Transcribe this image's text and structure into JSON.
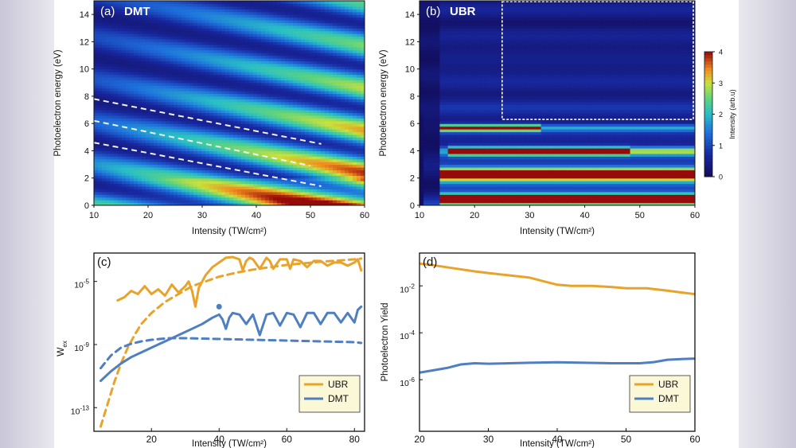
{
  "colors": {
    "ubr": "#e8a32a",
    "dmt": "#4f7fc0",
    "frame": "#111111"
  },
  "chart_data": [
    {
      "id": "a",
      "type": "heatmap",
      "panel_label": "(a)",
      "title": "DMT",
      "xlabel": "Intensity (TW/cm²)",
      "ylabel": "Photoelectron energy (eV)",
      "xlim": [
        10,
        60
      ],
      "ylim": [
        0,
        15
      ],
      "xticks": [
        "10",
        "20",
        "30",
        "40",
        "50",
        "60"
      ],
      "yticks": [
        "0",
        "2",
        "4",
        "6",
        "8",
        "10",
        "12",
        "14"
      ],
      "colormap": "jet-like",
      "dashed_guides": [
        {
          "x": [
            10,
            52
          ],
          "y": [
            7.8,
            4.5
          ]
        },
        {
          "x": [
            10,
            50
          ],
          "y": [
            6.2,
            2.9
          ]
        },
        {
          "x": [
            10,
            52
          ],
          "y": [
            4.6,
            1.4
          ]
        }
      ]
    },
    {
      "id": "b",
      "type": "heatmap",
      "panel_label": "(b)",
      "title": "UBR",
      "xlabel": "Intensity (TW/cm²)",
      "ylabel": "Photoelectron energy (eV)",
      "xlim": [
        10,
        60
      ],
      "ylim": [
        0,
        15
      ],
      "xticks": [
        "10",
        "20",
        "30",
        "40",
        "50",
        "60"
      ],
      "yticks": [
        "0",
        "2",
        "4",
        "6",
        "8",
        "10",
        "12",
        "14"
      ],
      "highlight_box": {
        "x": [
          25,
          60
        ],
        "y": [
          6.3,
          15
        ]
      },
      "colorbar": {
        "label": "Intensity (arb.u)",
        "range": [
          0,
          4
        ],
        "ticks": [
          "0",
          "1",
          "2",
          "3",
          "4"
        ]
      }
    },
    {
      "id": "c",
      "type": "line",
      "panel_label": "(c)",
      "xlabel": "Intensity (TW/cm²)",
      "ylabel": "W",
      "ylabel_sub": "ex",
      "xlim": [
        3,
        83
      ],
      "ylog_range": [
        -14.5,
        -3.2
      ],
      "xticks": [
        "20",
        "40",
        "60",
        "80"
      ],
      "yticks": [
        {
          "label": "10",
          "sup": "-5",
          "exp": -5
        },
        {
          "label": "10",
          "sup": "-9",
          "exp": -9
        },
        {
          "label": "10",
          "sup": "-13",
          "exp": -13
        }
      ],
      "legend": [
        "UBR",
        "DMT"
      ],
      "legend_position": "bottom-right",
      "series": [
        {
          "name": "UBR",
          "style": "solid",
          "color_key": "ubr",
          "x": [
            10,
            12,
            14,
            16,
            18,
            20,
            22,
            24,
            26,
            28,
            30,
            31,
            32,
            33,
            34,
            36,
            38,
            40,
            42,
            44,
            46,
            47,
            48,
            49,
            50,
            52,
            54,
            55,
            56,
            58,
            60,
            61,
            62,
            64,
            66,
            68,
            70,
            72,
            74,
            76,
            78,
            80,
            81,
            82
          ],
          "y": [
            -6.2,
            -6.0,
            -5.6,
            -5.8,
            -5.3,
            -5.8,
            -5.5,
            -5.9,
            -5.2,
            -5.7,
            -5.3,
            -5.0,
            -5.6,
            -6.6,
            -5.4,
            -4.6,
            -4.1,
            -3.8,
            -3.5,
            -3.45,
            -3.6,
            -4.3,
            -3.7,
            -3.5,
            -3.6,
            -4.2,
            -3.5,
            -3.7,
            -4.2,
            -3.6,
            -3.6,
            -4.2,
            -3.6,
            -3.7,
            -4.1,
            -3.7,
            -3.7,
            -4.0,
            -3.8,
            -3.8,
            -4.0,
            -3.8,
            -3.6,
            -4.3
          ]
        },
        {
          "name": "UBR",
          "style": "dashed",
          "color_key": "ubr",
          "x": [
            5,
            7,
            9,
            11,
            13,
            15,
            17,
            20,
            24,
            28,
            32,
            36,
            40,
            45,
            50,
            55,
            60,
            65,
            70,
            75,
            80,
            82
          ],
          "y": [
            -14.2,
            -12.8,
            -11.4,
            -10.2,
            -9.2,
            -8.4,
            -7.7,
            -7.0,
            -6.3,
            -5.8,
            -5.3,
            -5.0,
            -4.7,
            -4.45,
            -4.25,
            -4.1,
            -3.95,
            -3.85,
            -3.75,
            -3.68,
            -3.6,
            -3.55
          ]
        },
        {
          "name": "DMT",
          "style": "solid",
          "color_key": "dmt",
          "x": [
            5,
            8,
            11,
            14,
            17,
            20,
            24,
            28,
            32,
            35,
            38,
            40,
            41,
            42,
            43,
            44,
            46,
            48,
            50,
            52,
            54,
            56,
            58,
            60,
            62,
            64,
            66,
            68,
            70,
            72,
            74,
            76,
            78,
            80,
            81,
            82
          ],
          "y": [
            -11.3,
            -10.7,
            -10.2,
            -9.8,
            -9.5,
            -9.2,
            -8.8,
            -8.4,
            -8.0,
            -7.7,
            -7.3,
            -7.1,
            -7.4,
            -8.0,
            -7.3,
            -7.0,
            -7.1,
            -7.7,
            -7.1,
            -8.4,
            -7.1,
            -7.0,
            -7.8,
            -7.0,
            -7.1,
            -7.9,
            -7.0,
            -7.0,
            -7.7,
            -7.0,
            -7.0,
            -7.6,
            -7.0,
            -7.6,
            -6.8,
            -6.6
          ]
        },
        {
          "name": "DMT",
          "style": "dashed",
          "color_key": "dmt",
          "x": [
            5,
            8,
            11,
            14,
            17,
            20,
            25,
            30,
            40,
            50,
            60,
            70,
            80,
            82
          ],
          "y": [
            -10.5,
            -9.7,
            -9.2,
            -8.95,
            -8.8,
            -8.7,
            -8.6,
            -8.6,
            -8.65,
            -8.7,
            -8.75,
            -8.8,
            -8.85,
            -8.9
          ]
        },
        {
          "name": "DMT",
          "style": "point",
          "color_key": "dmt",
          "x": [
            40
          ],
          "y": [
            -6.6
          ]
        }
      ]
    },
    {
      "id": "d",
      "type": "line",
      "panel_label": "(d)",
      "xlabel": "Intensity (TW/cm²)",
      "ylabel": "Photoelectron Yield",
      "xlim": [
        20,
        60
      ],
      "ylog_range": [
        -8.2,
        -0.6
      ],
      "xticks": [
        "20",
        "30",
        "40",
        "50",
        "60"
      ],
      "yticks": [
        {
          "label": "10",
          "sup": "-2",
          "exp": -2
        },
        {
          "label": "10",
          "sup": "-4",
          "exp": -4
        },
        {
          "label": "10",
          "sup": "-6",
          "exp": -6
        }
      ],
      "legend": [
        "UBR",
        "DMT"
      ],
      "legend_position": "bottom-right",
      "series": [
        {
          "name": "UBR",
          "style": "solid",
          "color_key": "ubr",
          "x": [
            20,
            22,
            25,
            28,
            30,
            33,
            36,
            38,
            40,
            42,
            45,
            48,
            50,
            53,
            56,
            58,
            60
          ],
          "y": [
            -1.05,
            -1.12,
            -1.25,
            -1.38,
            -1.45,
            -1.55,
            -1.65,
            -1.8,
            -1.95,
            -2.0,
            -2.0,
            -2.05,
            -2.1,
            -2.1,
            -2.2,
            -2.28,
            -2.35
          ]
        },
        {
          "name": "DMT",
          "style": "solid",
          "color_key": "dmt",
          "x": [
            20,
            22,
            24,
            26,
            28,
            30,
            33,
            36,
            40,
            44,
            48,
            50,
            52,
            54,
            56,
            58,
            60
          ],
          "y": [
            -5.7,
            -5.6,
            -5.5,
            -5.35,
            -5.3,
            -5.32,
            -5.3,
            -5.28,
            -5.26,
            -5.28,
            -5.3,
            -5.3,
            -5.3,
            -5.25,
            -5.15,
            -5.12,
            -5.1
          ]
        }
      ]
    }
  ]
}
